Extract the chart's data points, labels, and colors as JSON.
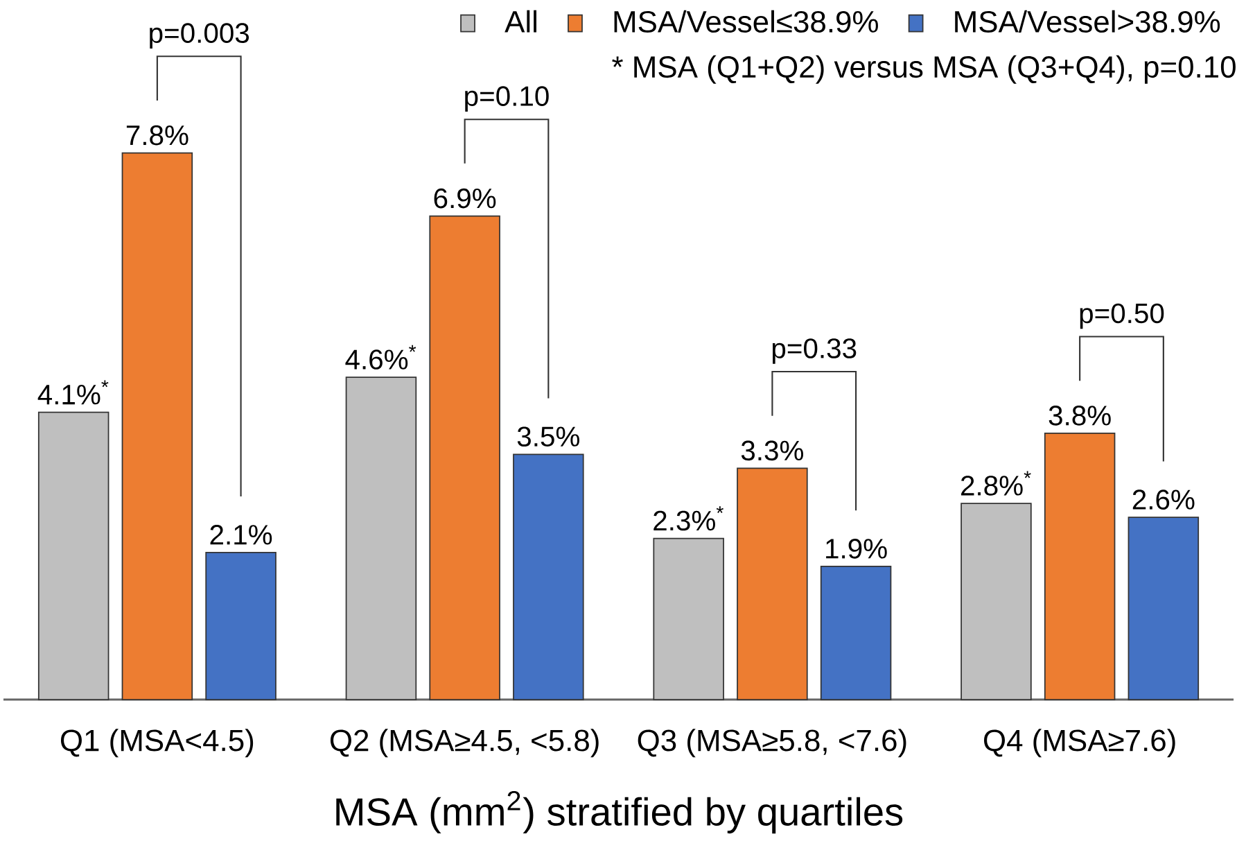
{
  "chart_data": {
    "type": "bar",
    "xlabel": "MSA (mm$^{2}$) stratified by quartiles",
    "categories": [
      "Q1 (MSA<4.5)",
      "Q2 (MSA≥4.5, <5.8)",
      "Q3 (MSA≥5.8, <7.6)",
      "Q4 (MSA≥7.6)"
    ],
    "series": [
      {
        "name": "All",
        "color": "#bfbfbf",
        "values": [
          4.1,
          4.6,
          2.3,
          2.8
        ],
        "value_labels": [
          "4.1%$^{*}$",
          "4.6%$^{*}$",
          "2.3%$^{*}$",
          "2.8%$^{*}$"
        ]
      },
      {
        "name": "MSA/Vessel≤38.9%",
        "color": "#ed7d31",
        "values": [
          7.8,
          6.9,
          3.3,
          3.8
        ],
        "value_labels": [
          "7.8%",
          "6.9%",
          "3.3%",
          "3.8%"
        ]
      },
      {
        "name": "MSA/Vessel>38.9%",
        "color": "#4472c4",
        "values": [
          2.1,
          3.5,
          1.9,
          2.6
        ],
        "value_labels": [
          "2.1%",
          "3.5%",
          "1.9%",
          "2.6%"
        ]
      }
    ],
    "legend": "top right",
    "annotations": [
      "p=0.003",
      "p=0.10",
      "p=0.33",
      "p=0.50",
      "* MSA (Q1+Q2) versus MSA (Q3+Q4), p=0.10"
    ]
  }
}
